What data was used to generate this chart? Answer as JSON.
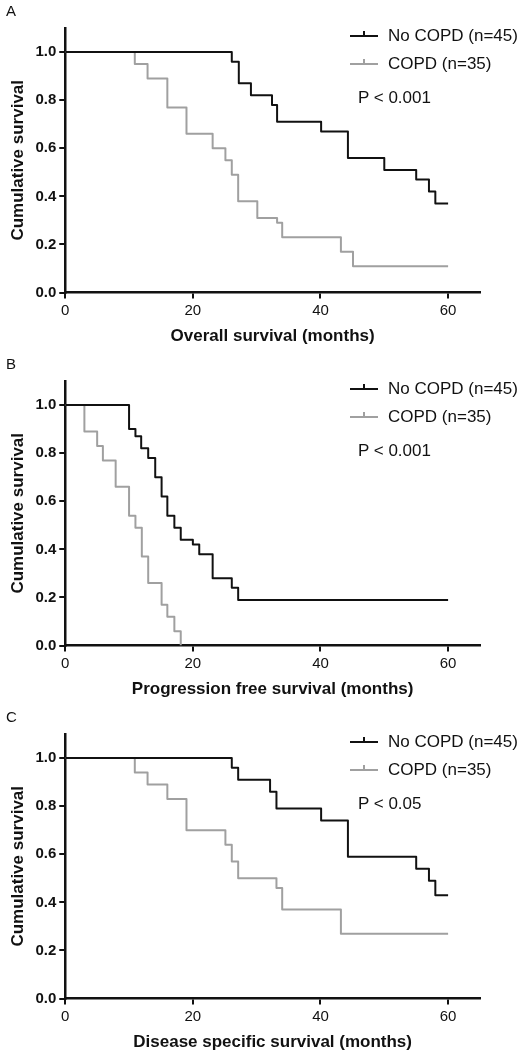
{
  "chart_data": [
    {
      "type": "step",
      "xlabel": "Overall survival (months)",
      "ylabel": "Cumulative survival",
      "annotations": [
        "A",
        "P < 0.001"
      ],
      "legend": "top right",
      "xlim": [
        0,
        65
      ],
      "xticks": [
        0,
        20,
        40,
        60
      ],
      "ylim": [
        0,
        1.1
      ],
      "yticks": [
        {
          "value": 0,
          "label": "0.0"
        },
        {
          "value": 0.2,
          "label": "0.2"
        },
        {
          "value": 0.4,
          "label": "0.4"
        },
        {
          "value": 0.6,
          "label": "0.6"
        },
        {
          "value": 0.8,
          "label": "0.8"
        },
        {
          "value": 1,
          "label": "1.0"
        }
      ],
      "grid": false,
      "series": [
        {
          "name": "No COPD (n=45)",
          "color": "#111111",
          "x": [
            0,
            26.1,
            27.2,
            29.1,
            32.4,
            33.2,
            40.1,
            44.3,
            50,
            55,
            57,
            58,
            60
          ],
          "values": [
            1,
            0.96,
            0.87,
            0.82,
            0.78,
            0.71,
            0.67,
            0.56,
            0.51,
            0.47,
            0.42,
            0.37,
            0.37
          ]
        },
        {
          "name": "COPD (n=35)",
          "color": "#a0a0a0",
          "x": [
            0,
            10.9,
            12.9,
            16,
            19,
            23.1,
            25.1,
            26.1,
            27.1,
            30.1,
            33.2,
            34,
            43.2,
            45.1,
            60
          ],
          "values": [
            1,
            0.95,
            0.89,
            0.77,
            0.66,
            0.6,
            0.55,
            0.49,
            0.38,
            0.31,
            0.29,
            0.23,
            0.17,
            0.11,
            0.11
          ]
        }
      ]
    },
    {
      "type": "step",
      "xlabel": "Progression free survival (months)",
      "ylabel": "Cumulative survival",
      "annotations": [
        "B",
        "P < 0.001"
      ],
      "legend": "top right",
      "xlim": [
        0,
        65
      ],
      "xticks": [
        0,
        20,
        40,
        60
      ],
      "ylim": [
        0,
        1.1
      ],
      "yticks": [
        {
          "value": 0,
          "label": "0.0"
        },
        {
          "value": 0.2,
          "label": "0.2"
        },
        {
          "value": 0.4,
          "label": "0.4"
        },
        {
          "value": 0.6,
          "label": "0.6"
        },
        {
          "value": 0.8,
          "label": "0.8"
        },
        {
          "value": 1,
          "label": "1.0"
        }
      ],
      "grid": false,
      "series": [
        {
          "name": "No COPD (n=45)",
          "color": "#111111",
          "x": [
            0,
            10,
            11,
            11.9,
            13,
            14.1,
            15.1,
            16,
            17.1,
            18.1,
            20,
            21,
            23.1,
            26.1,
            27.1,
            60
          ],
          "values": [
            1,
            0.9,
            0.87,
            0.82,
            0.78,
            0.7,
            0.62,
            0.54,
            0.49,
            0.44,
            0.42,
            0.38,
            0.28,
            0.24,
            0.19,
            0.19
          ]
        },
        {
          "name": "COPD (n=35)",
          "color": "#a0a0a0",
          "x": [
            0,
            3,
            5,
            5.9,
            7.9,
            10,
            11,
            12,
            13,
            15.1,
            16,
            17.1,
            18.1
          ],
          "values": [
            1,
            0.89,
            0.83,
            0.77,
            0.66,
            0.54,
            0.49,
            0.37,
            0.26,
            0.17,
            0.12,
            0.06,
            0
          ]
        }
      ]
    },
    {
      "type": "step",
      "xlabel": "Disease specific survival (months)",
      "ylabel": "Cumulative survival",
      "annotations": [
        "C",
        "P < 0.05"
      ],
      "legend": "top right",
      "xlim": [
        0,
        65
      ],
      "xticks": [
        0,
        20,
        40,
        60
      ],
      "ylim": [
        0,
        1.1
      ],
      "yticks": [
        {
          "value": 0,
          "label": "0.0"
        },
        {
          "value": 0.2,
          "label": "0.2"
        },
        {
          "value": 0.4,
          "label": "0.4"
        },
        {
          "value": 0.6,
          "label": "0.6"
        },
        {
          "value": 0.8,
          "label": "0.8"
        },
        {
          "value": 1,
          "label": "1.0"
        }
      ],
      "grid": false,
      "series": [
        {
          "name": "No COPD (n=45)",
          "color": "#111111",
          "x": [
            0,
            26.1,
            27.1,
            32.1,
            33.1,
            40.1,
            44.3,
            55,
            57,
            58,
            60
          ],
          "values": [
            1,
            0.96,
            0.91,
            0.86,
            0.79,
            0.74,
            0.59,
            0.54,
            0.49,
            0.43,
            0.43
          ]
        },
        {
          "name": "COPD (n=35)",
          "color": "#a0a0a0",
          "x": [
            0,
            10.9,
            12.9,
            16,
            19,
            25.1,
            26.1,
            27.1,
            33.1,
            34,
            43.2,
            60
          ],
          "values": [
            1,
            0.94,
            0.89,
            0.83,
            0.7,
            0.64,
            0.57,
            0.5,
            0.46,
            0.37,
            0.27,
            0.27
          ]
        }
      ]
    }
  ]
}
